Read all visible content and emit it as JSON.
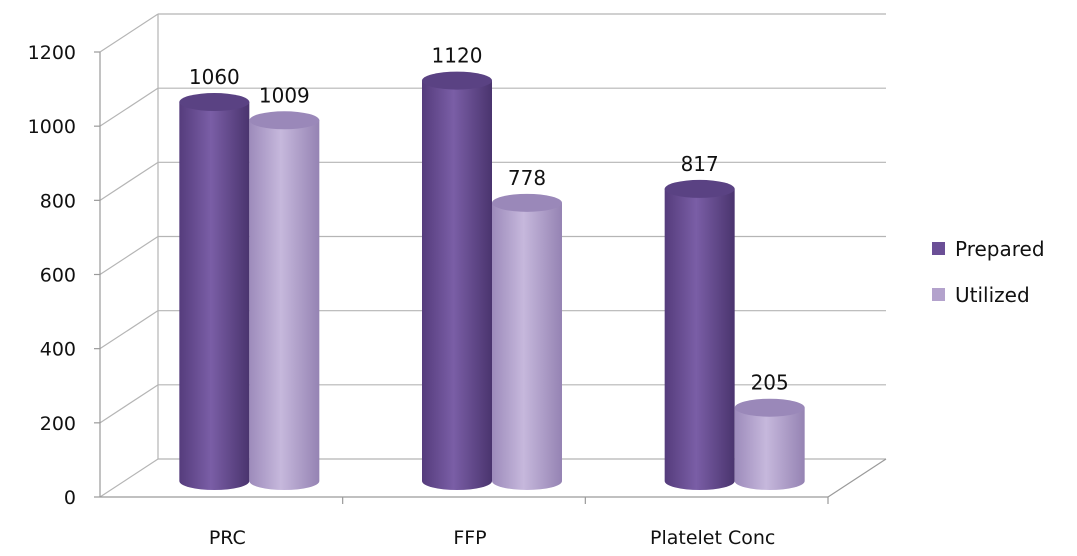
{
  "chart_data": {
    "type": "bar",
    "style": "3d-cylinder",
    "categories": [
      "PRC",
      "FFP",
      "Platelet Conc"
    ],
    "series": [
      {
        "name": "Prepared",
        "values": [
          1060,
          1120,
          817
        ],
        "color": "#6b4f96"
      },
      {
        "name": "Utilized",
        "values": [
          1009,
          778,
          205
        ],
        "color": "#b3a2cc"
      }
    ],
    "ylim": [
      0,
      1200
    ],
    "yticks": [
      "0",
      "200",
      "400",
      "600",
      "800",
      "1000",
      "1200"
    ],
    "data_labels": [
      [
        "1060",
        "1120",
        "817"
      ],
      [
        "1009",
        "778",
        "205"
      ]
    ],
    "grid": true,
    "legend_position": "right"
  }
}
